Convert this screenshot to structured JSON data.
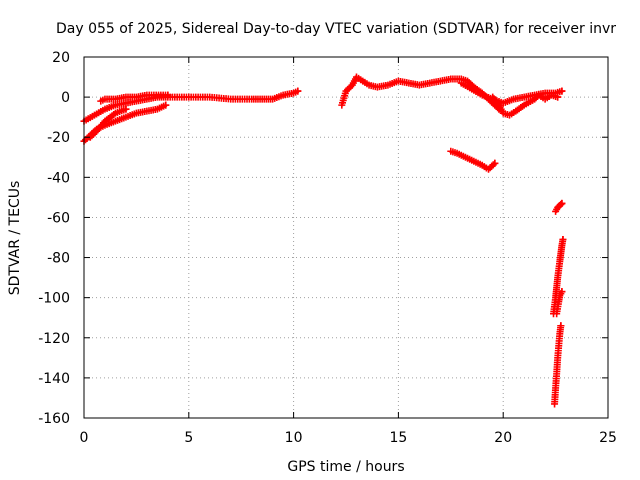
{
  "chart_data": {
    "type": "scatter",
    "title": "Day 055 of 2025, Sidereal Day-to-day VTEC variation (SDTVAR) for receiver invr",
    "xlabel": "GPS time / hours",
    "ylabel": "SDTVAR / TECUs",
    "xlim": [
      0,
      25
    ],
    "ylim": [
      -160,
      20
    ],
    "xticks": [
      0,
      5,
      10,
      15,
      20,
      25
    ],
    "yticks": [
      -160,
      -140,
      -120,
      -100,
      -80,
      -60,
      -40,
      -20,
      0,
      20
    ],
    "grid": true,
    "marker": "plus",
    "color": "#ff0000",
    "series": [
      {
        "segments": [
          [
            [
              0.0,
              -12
            ],
            [
              0.5,
              -9
            ],
            [
              1.0,
              -6
            ],
            [
              1.5,
              -4
            ],
            [
              2.0,
              -3
            ],
            [
              2.5,
              -2
            ],
            [
              3.0,
              -1
            ],
            [
              3.5,
              0
            ],
            [
              4.0,
              0
            ],
            [
              5.0,
              0
            ],
            [
              6.0,
              0
            ],
            [
              7.0,
              -1
            ],
            [
              8.0,
              -1
            ],
            [
              8.5,
              -1
            ],
            [
              9.0,
              -1
            ],
            [
              9.5,
              1
            ],
            [
              10.0,
              2
            ],
            [
              10.2,
              3
            ]
          ],
          [
            [
              0.0,
              -22
            ],
            [
              0.3,
              -19
            ],
            [
              0.6,
              -16
            ],
            [
              1.0,
              -14
            ],
            [
              1.5,
              -12
            ],
            [
              2.0,
              -10
            ],
            [
              2.5,
              -8
            ],
            [
              3.0,
              -7
            ],
            [
              3.5,
              -6
            ],
            [
              3.9,
              -4
            ]
          ],
          [
            [
              0.8,
              -2
            ],
            [
              1.0,
              -1
            ],
            [
              1.5,
              -1
            ],
            [
              2.0,
              0
            ],
            [
              2.5,
              0
            ],
            [
              3.0,
              1
            ],
            [
              4.0,
              1
            ]
          ],
          [
            [
              0.3,
              -20
            ],
            [
              0.6,
              -17
            ],
            [
              1.0,
              -12
            ],
            [
              1.5,
              -8
            ],
            [
              2.0,
              -6
            ]
          ],
          [
            [
              12.3,
              -4
            ],
            [
              12.5,
              3
            ],
            [
              12.8,
              6
            ],
            [
              13.0,
              10
            ],
            [
              13.3,
              8
            ],
            [
              13.6,
              6
            ],
            [
              14.0,
              5
            ],
            [
              14.5,
              6
            ],
            [
              15.0,
              8
            ],
            [
              15.5,
              7
            ],
            [
              16.0,
              6
            ],
            [
              16.5,
              7
            ],
            [
              17.0,
              8
            ],
            [
              17.5,
              9
            ],
            [
              18.0,
              9
            ],
            [
              18.3,
              8
            ],
            [
              18.6,
              5
            ],
            [
              19.0,
              2
            ],
            [
              19.3,
              -1
            ],
            [
              19.6,
              -4
            ],
            [
              19.8,
              -6
            ]
          ],
          [
            [
              18.0,
              7
            ],
            [
              18.5,
              4
            ],
            [
              19.0,
              1
            ],
            [
              19.5,
              -1
            ],
            [
              20.0,
              -3
            ],
            [
              20.5,
              -1
            ],
            [
              21.0,
              0
            ],
            [
              21.5,
              1
            ],
            [
              22.0,
              2
            ],
            [
              22.5,
              2
            ],
            [
              22.8,
              3
            ]
          ],
          [
            [
              19.5,
              0
            ],
            [
              19.8,
              -4
            ],
            [
              20.0,
              -8
            ],
            [
              20.3,
              -9
            ],
            [
              20.6,
              -7
            ],
            [
              21.0,
              -4
            ],
            [
              21.5,
              -1
            ],
            [
              21.7,
              1
            ],
            [
              22.0,
              -1
            ],
            [
              22.3,
              1
            ],
            [
              22.6,
              0
            ]
          ],
          [
            [
              17.5,
              -27
            ],
            [
              17.8,
              -28
            ],
            [
              18.2,
              -30
            ],
            [
              18.6,
              -32
            ],
            [
              19.0,
              -34
            ],
            [
              19.3,
              -36
            ],
            [
              19.6,
              -33
            ]
          ],
          [
            [
              22.5,
              -57
            ],
            [
              22.6,
              -55
            ],
            [
              22.7,
              -54
            ],
            [
              22.8,
              -53
            ]
          ],
          [
            [
              22.4,
              -108
            ],
            [
              22.5,
              -100
            ],
            [
              22.55,
              -95
            ],
            [
              22.6,
              -90
            ],
            [
              22.7,
              -82
            ],
            [
              22.75,
              -78
            ],
            [
              22.8,
              -74
            ],
            [
              22.85,
              -71
            ]
          ],
          [
            [
              22.45,
              -153
            ],
            [
              22.5,
              -145
            ],
            [
              22.55,
              -138
            ],
            [
              22.6,
              -130
            ],
            [
              22.65,
              -124
            ],
            [
              22.7,
              -118
            ],
            [
              22.75,
              -114
            ]
          ],
          [
            [
              22.55,
              -108
            ],
            [
              22.65,
              -102
            ],
            [
              22.7,
              -99
            ],
            [
              22.8,
              -97
            ]
          ]
        ]
      }
    ]
  }
}
